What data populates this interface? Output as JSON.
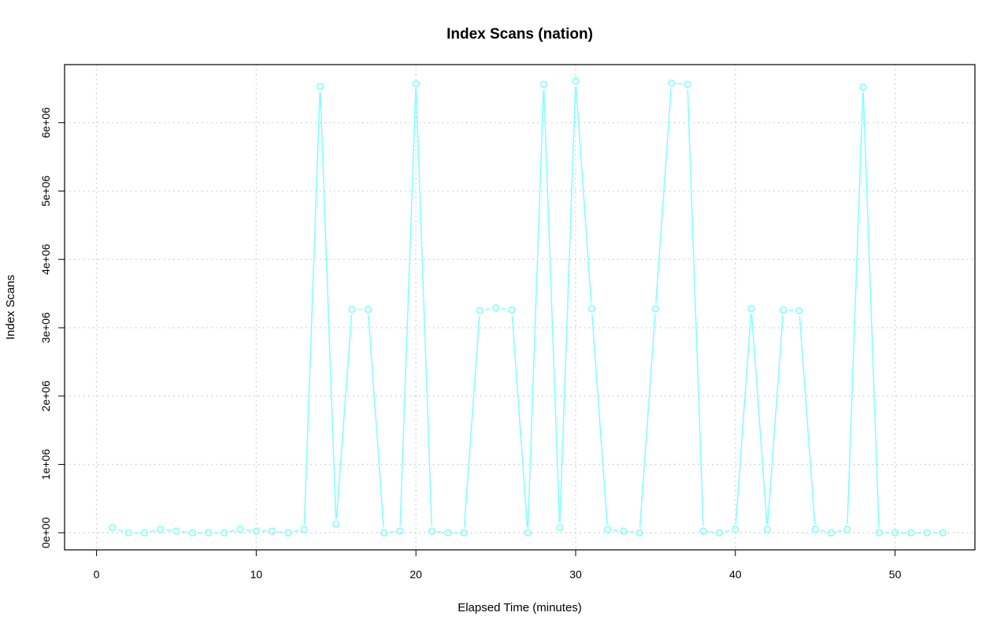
{
  "chart_data": {
    "type": "line",
    "title": "Index Scans (nation)",
    "xlabel": "Elapsed Time (minutes)",
    "ylabel": "Index Scans",
    "xlim": [
      -2,
      55
    ],
    "ylim": [
      -250000,
      6850000
    ],
    "x_ticks": [
      0,
      10,
      20,
      30,
      40,
      50
    ],
    "x_tick_labels": [
      "0",
      "10",
      "20",
      "30",
      "40",
      "50"
    ],
    "y_ticks": [
      0,
      1000000,
      2000000,
      3000000,
      4000000,
      5000000,
      6000000
    ],
    "y_tick_labels": [
      "0e+00",
      "1e+06",
      "2e+06",
      "3e+06",
      "4e+06",
      "5e+06",
      "6e+06"
    ],
    "grid": true,
    "series_color": "#7fffff",
    "series": [
      {
        "x": [
          1,
          2,
          3,
          4,
          5,
          6,
          7,
          8,
          9,
          10,
          11,
          12,
          13,
          14,
          15,
          16,
          17,
          18,
          19,
          20,
          21,
          22,
          23,
          24,
          25,
          26,
          27,
          28,
          29,
          30,
          31,
          32,
          33,
          34,
          35,
          36,
          37,
          38,
          39,
          40,
          41,
          42,
          43,
          44,
          45,
          46,
          47,
          48,
          49,
          50,
          51,
          52,
          53
        ],
        "values": [
          75000,
          0,
          0,
          50000,
          25000,
          0,
          0,
          0,
          50000,
          25000,
          25000,
          0,
          50000,
          6530000,
          125000,
          3270000,
          3270000,
          0,
          25000,
          6570000,
          25000,
          0,
          0,
          3250000,
          3290000,
          3260000,
          0,
          6560000,
          75000,
          6610000,
          3280000,
          50000,
          25000,
          0,
          3280000,
          6580000,
          6560000,
          25000,
          0,
          50000,
          3280000,
          50000,
          3260000,
          3250000,
          50000,
          0,
          50000,
          6520000,
          0,
          0,
          0,
          0,
          0
        ]
      }
    ]
  }
}
